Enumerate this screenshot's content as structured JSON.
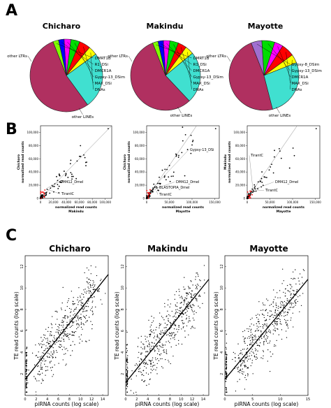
{
  "panels": {
    "a": "A",
    "b": "B",
    "c": "C"
  },
  "colors": {
    "other_ltrs": "#b03060",
    "other_lines": "#40e0d0",
    "dnas": "#ffff00",
    "max_dsi": "#ff0000",
    "gypsy13": "#00dd00",
    "dmcr1a": "#ff00ff",
    "r1_dsi": "#0000ff",
    "dmrt1b": "#7fff00",
    "gypsy8": "#a06fd0",
    "highlight": "#ff0000",
    "point": "#000000",
    "line": "#000000"
  },
  "chart_data": [
    {
      "type": "pie",
      "panel": "A",
      "title": "Chicharo",
      "slices": [
        {
          "label": "other LTRs",
          "value": 54,
          "color": "#b03060"
        },
        {
          "label": "other LINEs",
          "value": 25,
          "color": "#40e0d0"
        },
        {
          "label": "DNAs",
          "value": 4,
          "color": "#ffff00"
        },
        {
          "label": "MAX_DSi",
          "value": 5,
          "color": "#ff0000"
        },
        {
          "label": "Gypsy-13_DSim",
          "value": 4,
          "color": "#00dd00"
        },
        {
          "label": "DMCR1A",
          "value": 3,
          "color": "#ff00ff"
        },
        {
          "label": "R1_DSi",
          "value": 2.5,
          "color": "#0000ff"
        },
        {
          "label": "DMRT1B",
          "value": 2.5,
          "color": "#7fff00"
        }
      ]
    },
    {
      "type": "pie",
      "panel": "A",
      "title": "Makindu",
      "slices": [
        {
          "label": "other LTRs",
          "value": 56,
          "color": "#b03060"
        },
        {
          "label": "other LINEs",
          "value": 24,
          "color": "#40e0d0"
        },
        {
          "label": "DNAs",
          "value": 4,
          "color": "#ffff00"
        },
        {
          "label": "MAX_DSi",
          "value": 4,
          "color": "#ff0000"
        },
        {
          "label": "Gypsy-13_DSim",
          "value": 4,
          "color": "#00dd00"
        },
        {
          "label": "DMCR1A",
          "value": 3,
          "color": "#ff00ff"
        },
        {
          "label": "R1_DSi",
          "value": 2.5,
          "color": "#0000ff"
        },
        {
          "label": "DMRT1B",
          "value": 2.5,
          "color": "#7fff00"
        }
      ]
    },
    {
      "type": "pie",
      "panel": "A",
      "title": "Mayotte",
      "slices": [
        {
          "label": "other LTRs",
          "value": 48,
          "color": "#b03060"
        },
        {
          "label": "other LINEs",
          "value": 27,
          "color": "#40e0d0"
        },
        {
          "label": "DNAs",
          "value": 4,
          "color": "#ffff00"
        },
        {
          "label": "MAX_DSi",
          "value": 6,
          "color": "#ff0000"
        },
        {
          "label": "DMCR1A",
          "value": 4,
          "color": "#ff00ff"
        },
        {
          "label": "Gypsy-13_DSim",
          "value": 6,
          "color": "#00dd00"
        },
        {
          "label": "Gypsy-8_DSim",
          "value": 5,
          "color": "#a06fd0"
        }
      ]
    },
    {
      "type": "scatter",
      "panel": "B",
      "xlabel": [
        "normalized read counts",
        "Makindu"
      ],
      "ylabel": [
        "Chicharo",
        "normalized read counts"
      ],
      "xlim": [
        0,
        110000
      ],
      "ylim": [
        0,
        110000
      ],
      "xticks": [
        "0",
        "20,000",
        "40,000",
        "60,000",
        "80,000",
        "100,000"
      ],
      "yticks": [
        "0",
        "20,000",
        "40,000",
        "60,000",
        "80,000",
        "100,000"
      ],
      "annotations": [
        {
          "text": "DM412_Dmel",
          "color": "#000000"
        },
        {
          "text": "TirantC",
          "color": "#ff0000"
        }
      ]
    },
    {
      "type": "scatter",
      "panel": "B",
      "xlabel": [
        "normalized read counts",
        "Mayotte"
      ],
      "ylabel": [
        "Chicharo",
        "normalized read counts"
      ],
      "xlim": [
        0,
        160000
      ],
      "ylim": [
        0,
        110000
      ],
      "xticks": [
        "0",
        "50,000",
        "100,000",
        "150,000"
      ],
      "yticks": [
        "0",
        "20,000",
        "40,000",
        "60,000",
        "80,000",
        "100,000"
      ],
      "annotations": [
        {
          "text": "Gypsy-13_DSi",
          "color": "#ff0000"
        },
        {
          "text": "DM412_Dmel",
          "color": "#000000"
        },
        {
          "text": "BLASTOPIA_Dmel",
          "color": "#ff0000"
        },
        {
          "text": "TirantC",
          "color": "#ff0000"
        }
      ]
    },
    {
      "type": "scatter",
      "panel": "B",
      "xlabel": [
        "normalized read counts",
        "Mayotte"
      ],
      "ylabel": [
        "Makindu",
        "normalized read counts"
      ],
      "xlim": [
        0,
        160000
      ],
      "ylim": [
        0,
        110000
      ],
      "xticks": [
        "0",
        "50,000",
        "100,000",
        "150,000"
      ],
      "yticks": [
        "0",
        "20,000",
        "40,000",
        "60,000",
        "80,000",
        "100,000"
      ],
      "annotations": [
        {
          "text": "TirantC",
          "color": "#ff0000"
        },
        {
          "text": "DM412_Dmel",
          "color": "#000000"
        },
        {
          "text": "TirantC",
          "color": "#000000"
        }
      ]
    },
    {
      "type": "scatter",
      "panel": "C",
      "title": "Chicharo",
      "xlabel": "piRNA counts (log scale)",
      "ylabel": "TE read counts (log scale)",
      "xlim": [
        0,
        15
      ],
      "ylim": [
        0,
        13
      ],
      "xticks": [
        "0",
        "2",
        "4",
        "6",
        "8",
        "10",
        "12",
        "14"
      ],
      "yticks": [
        "2",
        "4",
        "6",
        "8",
        "10",
        "12"
      ],
      "fit": {
        "slope": 0.65,
        "intercept": 1.5
      }
    },
    {
      "type": "scatter",
      "panel": "C",
      "title": "Makindu",
      "xlabel": "piRNA counts (log scale)",
      "ylabel": "TE read counts (log scale)",
      "xlim": [
        0,
        15
      ],
      "ylim": [
        0,
        13
      ],
      "xticks": [
        "0",
        "2",
        "4",
        "6",
        "8",
        "10",
        "12",
        "14"
      ],
      "yticks": [
        "2",
        "4",
        "6",
        "8",
        "10",
        "12"
      ],
      "fit": {
        "slope": 0.64,
        "intercept": 1.2
      }
    },
    {
      "type": "scatter",
      "panel": "C",
      "title": "Mayotte",
      "xlabel": "piRNA counts (log scale)",
      "ylabel": "TE read counts (log scale)",
      "xlim": [
        0,
        15
      ],
      "ylim": [
        0,
        13
      ],
      "xticks": [
        "0",
        "5",
        "10",
        "15"
      ],
      "yticks": [
        "2",
        "4",
        "6",
        "8",
        "10",
        "12"
      ],
      "fit": {
        "slope": 0.62,
        "intercept": 1.5
      }
    }
  ]
}
